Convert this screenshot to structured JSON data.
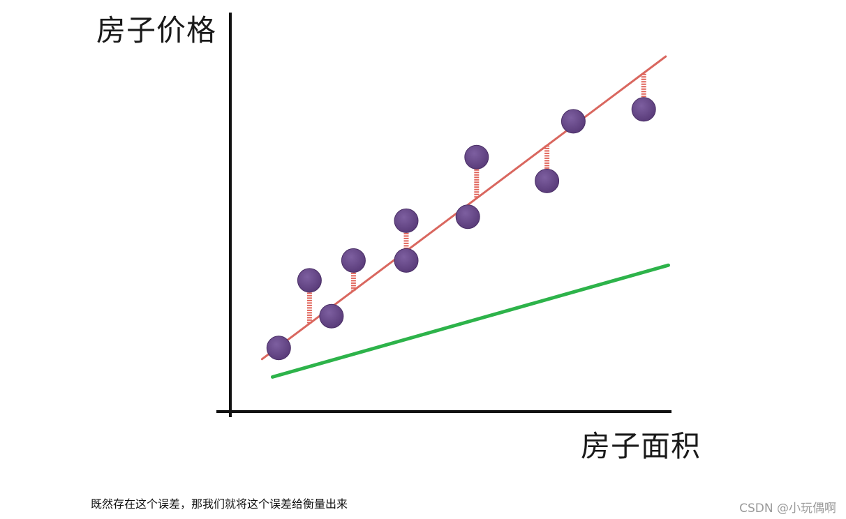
{
  "chart_data": {
    "type": "scatter",
    "xlabel": "房子面积",
    "ylabel": "房子价格",
    "grid": false,
    "legend": "none",
    "xlim": [
      0,
      10
    ],
    "ylim": [
      0,
      10
    ],
    "points": [
      {
        "x": 1.1,
        "y": 1.6
      },
      {
        "x": 1.8,
        "y": 3.3
      },
      {
        "x": 2.3,
        "y": 2.4
      },
      {
        "x": 2.8,
        "y": 3.8
      },
      {
        "x": 4.0,
        "y": 4.8
      },
      {
        "x": 4.0,
        "y": 3.8
      },
      {
        "x": 5.4,
        "y": 4.9
      },
      {
        "x": 5.6,
        "y": 6.4
      },
      {
        "x": 7.2,
        "y": 5.8
      },
      {
        "x": 7.8,
        "y": 7.3
      },
      {
        "x": 9.4,
        "y": 7.6
      }
    ],
    "fit_lines": [
      {
        "color": "#d9675f",
        "x": [
          0.72,
          9.9
        ],
        "y": [
          1.32,
          8.93
        ]
      },
      {
        "color": "#2db34a",
        "x": [
          0.96,
          9.96
        ],
        "y": [
          0.87,
          3.68
        ]
      }
    ],
    "residuals": {
      "color": "#e0645a",
      "point_indices": [
        1,
        3,
        4,
        7,
        8,
        10
      ]
    },
    "colors": {
      "point": "#6a4a8a",
      "axis": "#111111"
    }
  },
  "caption": "既然存在这个误差，那我们就将这个误差给衡量出来",
  "watermark": "CSDN @小玩偶啊"
}
